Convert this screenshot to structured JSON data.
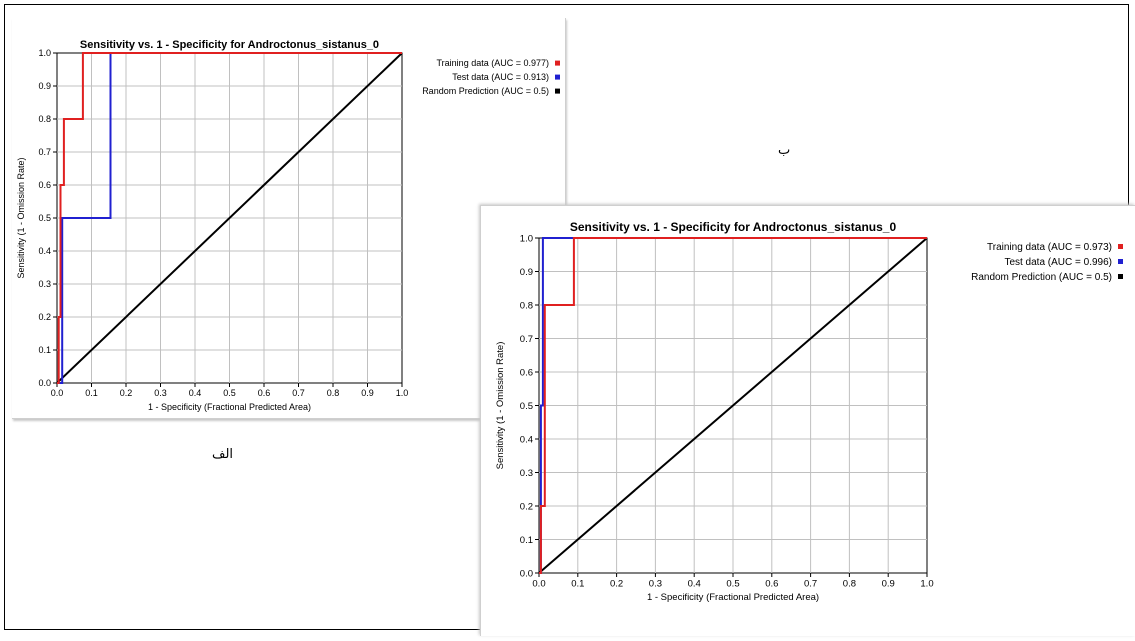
{
  "captions": {
    "a": "الف",
    "b": "ب"
  },
  "chart_data": [
    {
      "type": "line",
      "title": "Sensitivity vs. 1 - Specificity for Androctonus_sistanus_0",
      "xlabel": "1 - Specificity  (Fractional Predicted Area)",
      "ylabel": "Sensitivity  (1 - Omission Rate)",
      "xlim": [
        0,
        1
      ],
      "ylim": [
        0,
        1
      ],
      "xticks": [
        "0.0",
        "0.1",
        "0.2",
        "0.3",
        "0.4",
        "0.5",
        "0.6",
        "0.7",
        "0.8",
        "0.9",
        "1.0"
      ],
      "yticks": [
        "0.0",
        "0.1",
        "0.2",
        "0.3",
        "0.4",
        "0.5",
        "0.6",
        "0.7",
        "0.8",
        "0.9",
        "1.0"
      ],
      "grid": true,
      "legend_position": "top-right-outside",
      "series": [
        {
          "name": "Training data (AUC = 0.977)",
          "color": "#e02020",
          "x": [
            0,
            0.005,
            0.005,
            0.01,
            0.01,
            0.02,
            0.02,
            0.075,
            0.075,
            1.0
          ],
          "y": [
            0,
            0,
            0.2,
            0.2,
            0.6,
            0.6,
            0.8,
            0.8,
            1.0,
            1.0
          ]
        },
        {
          "name": "Test data (AUC = 0.913)",
          "color": "#2020d0",
          "x": [
            0,
            0.015,
            0.015,
            0.155,
            0.155,
            1.0
          ],
          "y": [
            0,
            0,
            0.5,
            0.5,
            1.0,
            1.0
          ]
        },
        {
          "name": "Random Prediction (AUC = 0.5)",
          "color": "#000000",
          "x": [
            0,
            1
          ],
          "y": [
            0,
            1
          ]
        }
      ]
    },
    {
      "type": "line",
      "title": "Sensitivity vs. 1 - Specificity for Androctonus_sistanus_0",
      "xlabel": "1 - Specificity  (Fractional Predicted Area)",
      "ylabel": "Sensitivity  (1 - Omission Rate)",
      "xlim": [
        0,
        1
      ],
      "ylim": [
        0,
        1
      ],
      "xticks": [
        "0.0",
        "0.1",
        "0.2",
        "0.3",
        "0.4",
        "0.5",
        "0.6",
        "0.7",
        "0.8",
        "0.9",
        "1.0"
      ],
      "yticks": [
        "0.0",
        "0.1",
        "0.2",
        "0.3",
        "0.4",
        "0.5",
        "0.6",
        "0.7",
        "0.8",
        "0.9",
        "1.0"
      ],
      "grid": true,
      "legend_position": "top-right-outside",
      "series": [
        {
          "name": "Training data (AUC = 0.973)",
          "color": "#e02020",
          "x": [
            0,
            0.005,
            0.005,
            0.015,
            0.015,
            0.09,
            0.09,
            1.0
          ],
          "y": [
            0,
            0,
            0.2,
            0.2,
            0.8,
            0.8,
            1.0,
            1.0
          ]
        },
        {
          "name": "Test data (AUC = 0.996)",
          "color": "#2020d0",
          "x": [
            0,
            0.005,
            0.005,
            0.01,
            0.01,
            1.0
          ],
          "y": [
            0,
            0,
            0.5,
            0.5,
            1.0,
            1.0
          ]
        },
        {
          "name": "Random Prediction (AUC = 0.5)",
          "color": "#000000",
          "x": [
            0,
            1
          ],
          "y": [
            0,
            1
          ]
        }
      ]
    }
  ]
}
